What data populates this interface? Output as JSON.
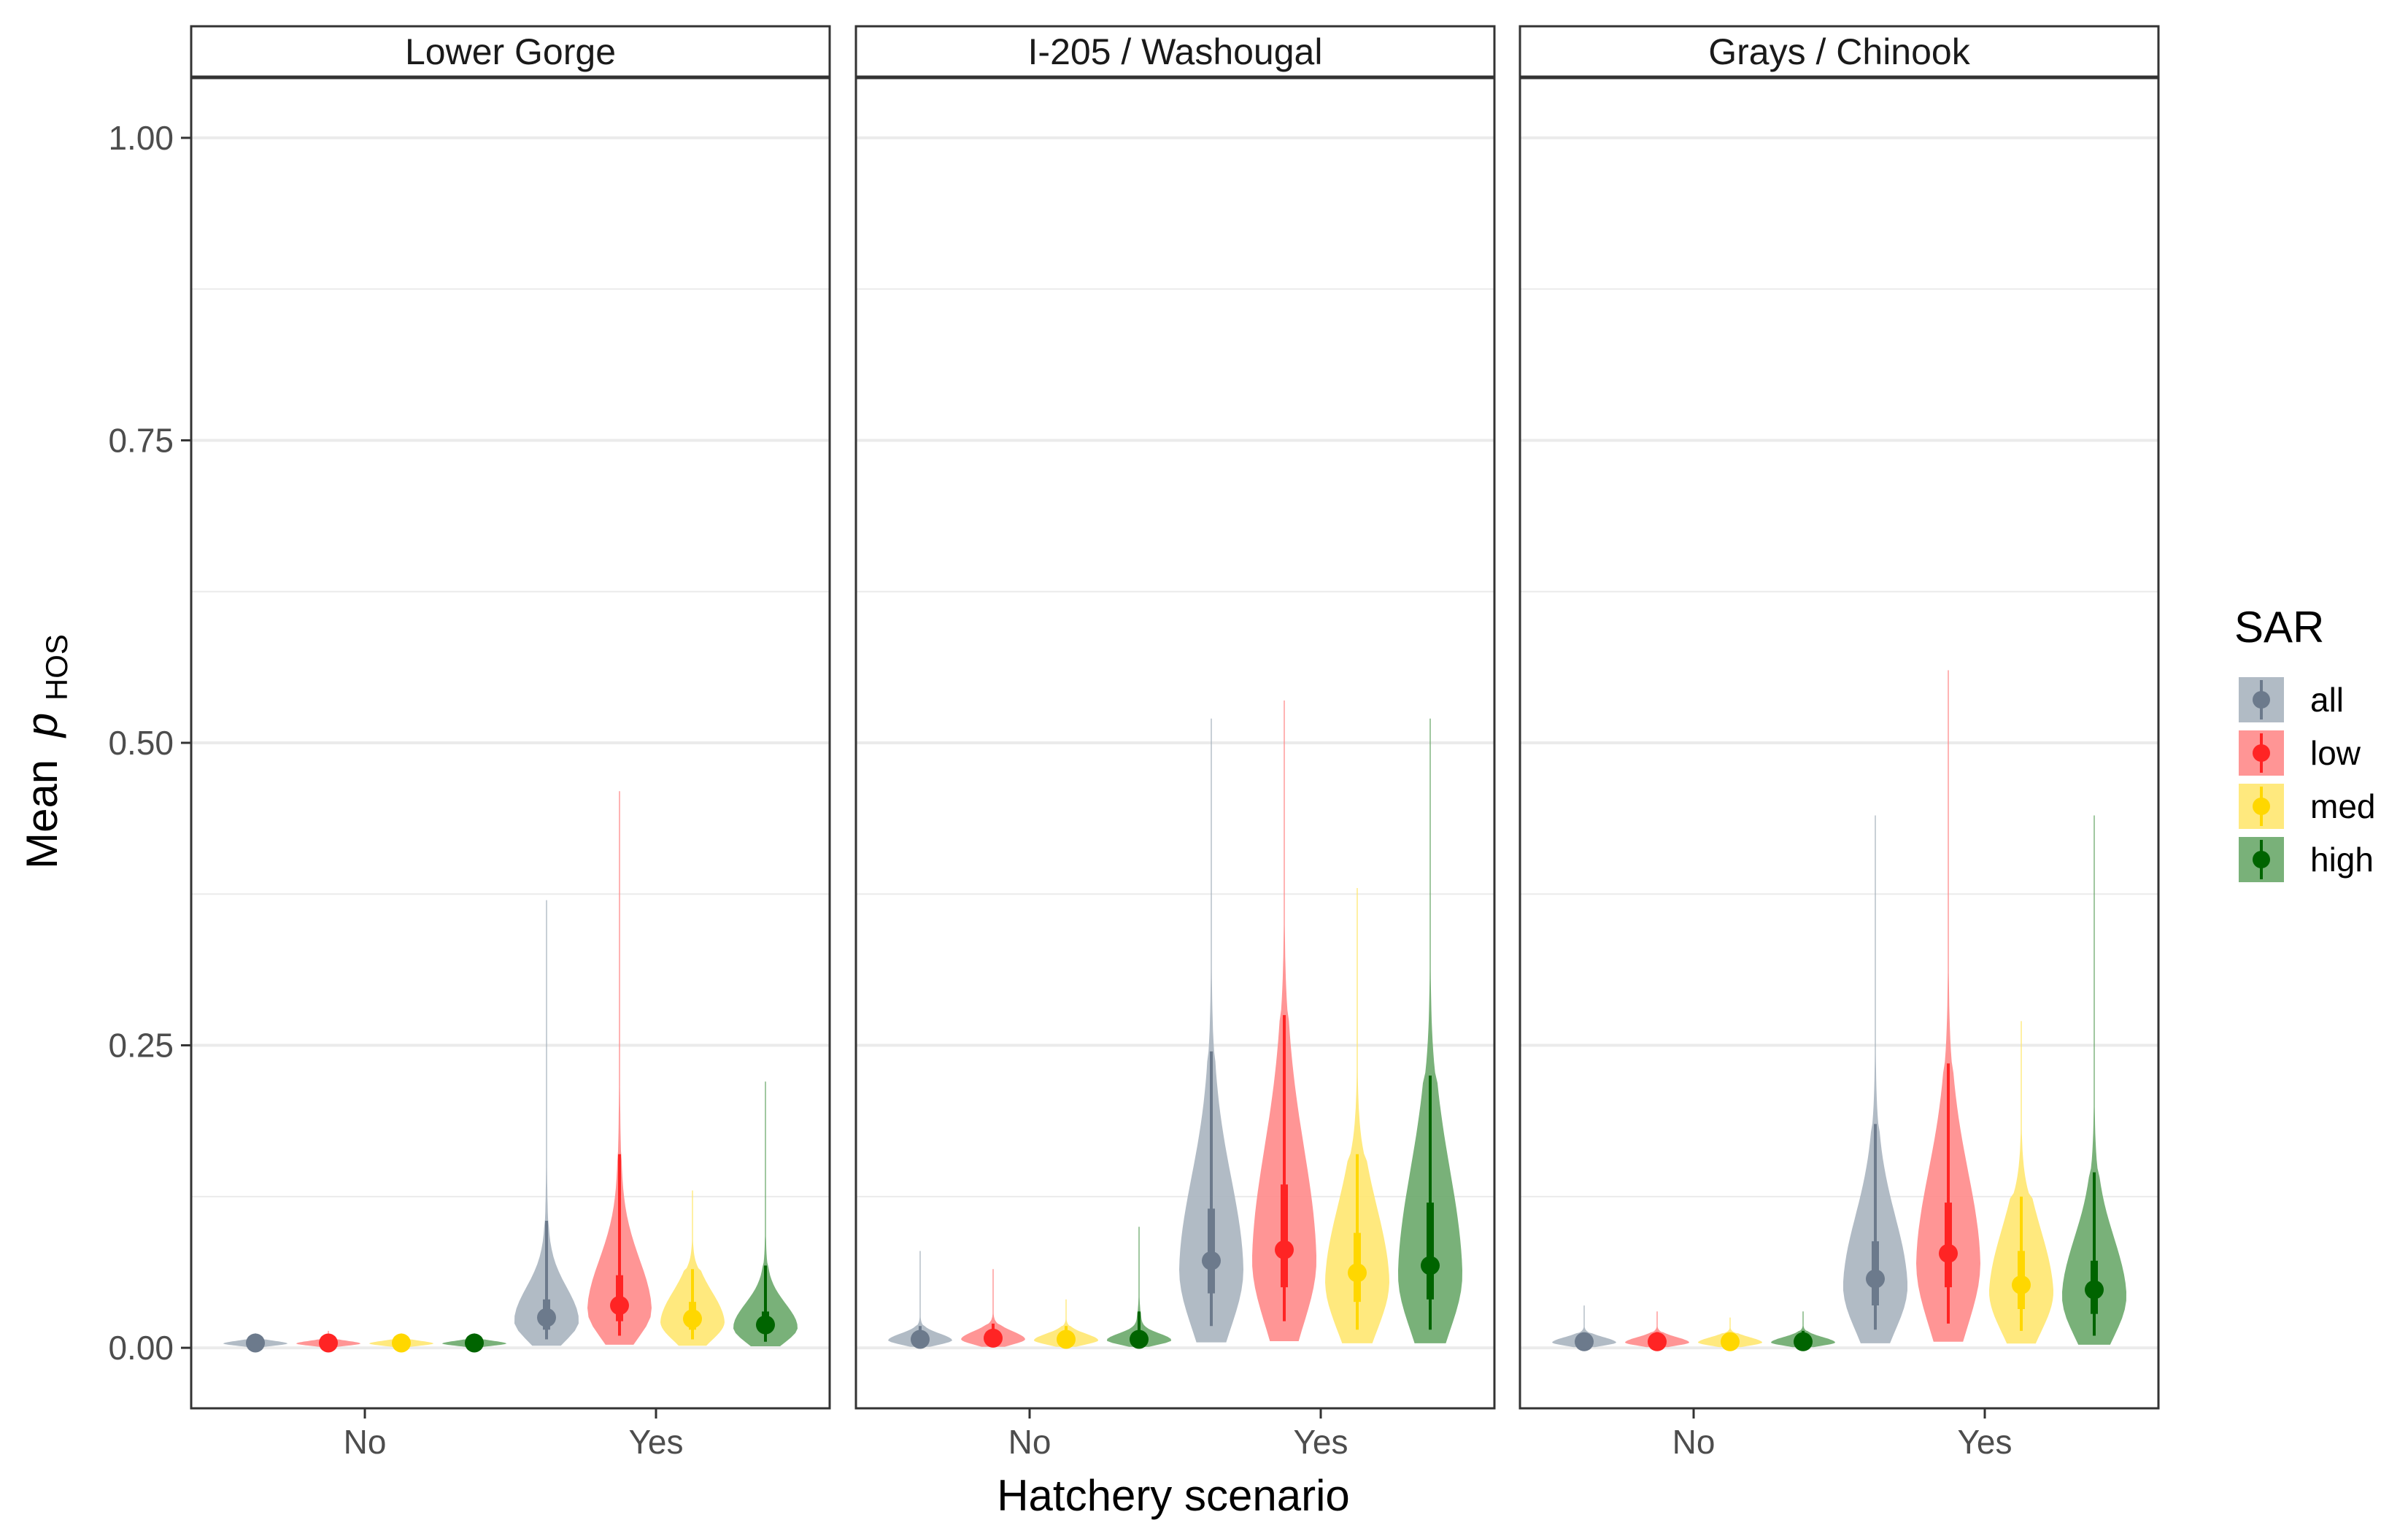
{
  "chart_data": {
    "type": "violin",
    "facets": [
      "Lower Gorge",
      "I-205 / Washougal",
      "Grays / Chinook"
    ],
    "x_categories": [
      "No",
      "Yes"
    ],
    "xlabel": "Hatchery scenario",
    "ylabel": "Mean",
    "ylabel_symbol": "p",
    "ylabel_subscript": "HOS",
    "ylim": [
      -0.05,
      1.05
    ],
    "yticks": [
      0.0,
      0.25,
      0.5,
      0.75,
      1.0
    ],
    "ytick_labels": [
      "0.00",
      "0.25",
      "0.50",
      "0.75",
      "1.00"
    ],
    "grid": true,
    "legend": {
      "title": "SAR",
      "position": "right",
      "entries": [
        {
          "label": "all",
          "color": "#6c7a8c",
          "fill": "#a9b4bf"
        },
        {
          "label": "low",
          "color": "#ff2424",
          "fill": "#ff8a8a"
        },
        {
          "label": "med",
          "color": "#ffd700",
          "fill": "#ffe770"
        },
        {
          "label": "high",
          "color": "#006400",
          "fill": "#6aa86a"
        }
      ]
    },
    "series": [
      {
        "facet": "Lower Gorge",
        "scenario": "No",
        "sar": "all",
        "median": 0.004,
        "q25": 0.003,
        "q75": 0.005,
        "p5": 0.002,
        "p95": 0.007,
        "max": 0.012
      },
      {
        "facet": "Lower Gorge",
        "scenario": "No",
        "sar": "low",
        "median": 0.004,
        "q25": 0.003,
        "q75": 0.005,
        "p5": 0.002,
        "p95": 0.007,
        "max": 0.014
      },
      {
        "facet": "Lower Gorge",
        "scenario": "No",
        "sar": "med",
        "median": 0.004,
        "q25": 0.003,
        "q75": 0.005,
        "p5": 0.002,
        "p95": 0.007,
        "max": 0.012
      },
      {
        "facet": "Lower Gorge",
        "scenario": "No",
        "sar": "high",
        "median": 0.004,
        "q25": 0.003,
        "q75": 0.005,
        "p5": 0.002,
        "p95": 0.007,
        "max": 0.012
      },
      {
        "facet": "Lower Gorge",
        "scenario": "Yes",
        "sar": "all",
        "median": 0.025,
        "q25": 0.015,
        "q75": 0.04,
        "p5": 0.007,
        "p95": 0.105,
        "max": 0.37
      },
      {
        "facet": "Lower Gorge",
        "scenario": "Yes",
        "sar": "low",
        "median": 0.035,
        "q25": 0.022,
        "q75": 0.06,
        "p5": 0.01,
        "p95": 0.16,
        "max": 0.46
      },
      {
        "facet": "Lower Gorge",
        "scenario": "Yes",
        "sar": "med",
        "median": 0.024,
        "q25": 0.015,
        "q75": 0.038,
        "p5": 0.007,
        "p95": 0.065,
        "max": 0.13
      },
      {
        "facet": "Lower Gorge",
        "scenario": "Yes",
        "sar": "high",
        "median": 0.019,
        "q25": 0.012,
        "q75": 0.03,
        "p5": 0.005,
        "p95": 0.068,
        "max": 0.22
      },
      {
        "facet": "I-205 / Washougal",
        "scenario": "No",
        "sar": "all",
        "median": 0.007,
        "q25": 0.005,
        "q75": 0.01,
        "p5": 0.003,
        "p95": 0.018,
        "max": 0.08
      },
      {
        "facet": "I-205 / Washougal",
        "scenario": "No",
        "sar": "low",
        "median": 0.008,
        "q25": 0.005,
        "q75": 0.011,
        "p5": 0.003,
        "p95": 0.02,
        "max": 0.065
      },
      {
        "facet": "I-205 / Washougal",
        "scenario": "No",
        "sar": "med",
        "median": 0.007,
        "q25": 0.005,
        "q75": 0.01,
        "p5": 0.003,
        "p95": 0.018,
        "max": 0.04
      },
      {
        "facet": "I-205 / Washougal",
        "scenario": "No",
        "sar": "high",
        "median": 0.007,
        "q25": 0.005,
        "q75": 0.01,
        "p5": 0.003,
        "p95": 0.03,
        "max": 0.1
      },
      {
        "facet": "I-205 / Washougal",
        "scenario": "Yes",
        "sar": "all",
        "median": 0.072,
        "q25": 0.045,
        "q75": 0.115,
        "p5": 0.018,
        "p95": 0.245,
        "max": 0.52
      },
      {
        "facet": "I-205 / Washougal",
        "scenario": "Yes",
        "sar": "low",
        "median": 0.081,
        "q25": 0.05,
        "q75": 0.135,
        "p5": 0.022,
        "p95": 0.275,
        "max": 0.535
      },
      {
        "facet": "I-205 / Washougal",
        "scenario": "Yes",
        "sar": "med",
        "median": 0.062,
        "q25": 0.038,
        "q75": 0.095,
        "p5": 0.015,
        "p95": 0.16,
        "max": 0.38
      },
      {
        "facet": "I-205 / Washougal",
        "scenario": "Yes",
        "sar": "high",
        "median": 0.068,
        "q25": 0.04,
        "q75": 0.12,
        "p5": 0.015,
        "p95": 0.225,
        "max": 0.52
      },
      {
        "facet": "Grays / Chinook",
        "scenario": "No",
        "sar": "all",
        "median": 0.005,
        "q25": 0.003,
        "q75": 0.007,
        "p5": 0.002,
        "p95": 0.012,
        "max": 0.035
      },
      {
        "facet": "Grays / Chinook",
        "scenario": "No",
        "sar": "low",
        "median": 0.005,
        "q25": 0.003,
        "q75": 0.007,
        "p5": 0.002,
        "p95": 0.013,
        "max": 0.03
      },
      {
        "facet": "Grays / Chinook",
        "scenario": "No",
        "sar": "med",
        "median": 0.005,
        "q25": 0.003,
        "q75": 0.007,
        "p5": 0.002,
        "p95": 0.012,
        "max": 0.025
      },
      {
        "facet": "Grays / Chinook",
        "scenario": "No",
        "sar": "high",
        "median": 0.005,
        "q25": 0.003,
        "q75": 0.007,
        "p5": 0.002,
        "p95": 0.014,
        "max": 0.03
      },
      {
        "facet": "Grays / Chinook",
        "scenario": "Yes",
        "sar": "all",
        "median": 0.057,
        "q25": 0.035,
        "q75": 0.088,
        "p5": 0.015,
        "p95": 0.185,
        "max": 0.44
      },
      {
        "facet": "Grays / Chinook",
        "scenario": "Yes",
        "sar": "low",
        "median": 0.078,
        "q25": 0.05,
        "q75": 0.12,
        "p5": 0.02,
        "p95": 0.235,
        "max": 0.56
      },
      {
        "facet": "Grays / Chinook",
        "scenario": "Yes",
        "sar": "med",
        "median": 0.052,
        "q25": 0.032,
        "q75": 0.08,
        "p5": 0.014,
        "p95": 0.125,
        "max": 0.27
      },
      {
        "facet": "Grays / Chinook",
        "scenario": "Yes",
        "sar": "high",
        "median": 0.048,
        "q25": 0.028,
        "q75": 0.072,
        "p5": 0.01,
        "p95": 0.145,
        "max": 0.44
      }
    ]
  }
}
